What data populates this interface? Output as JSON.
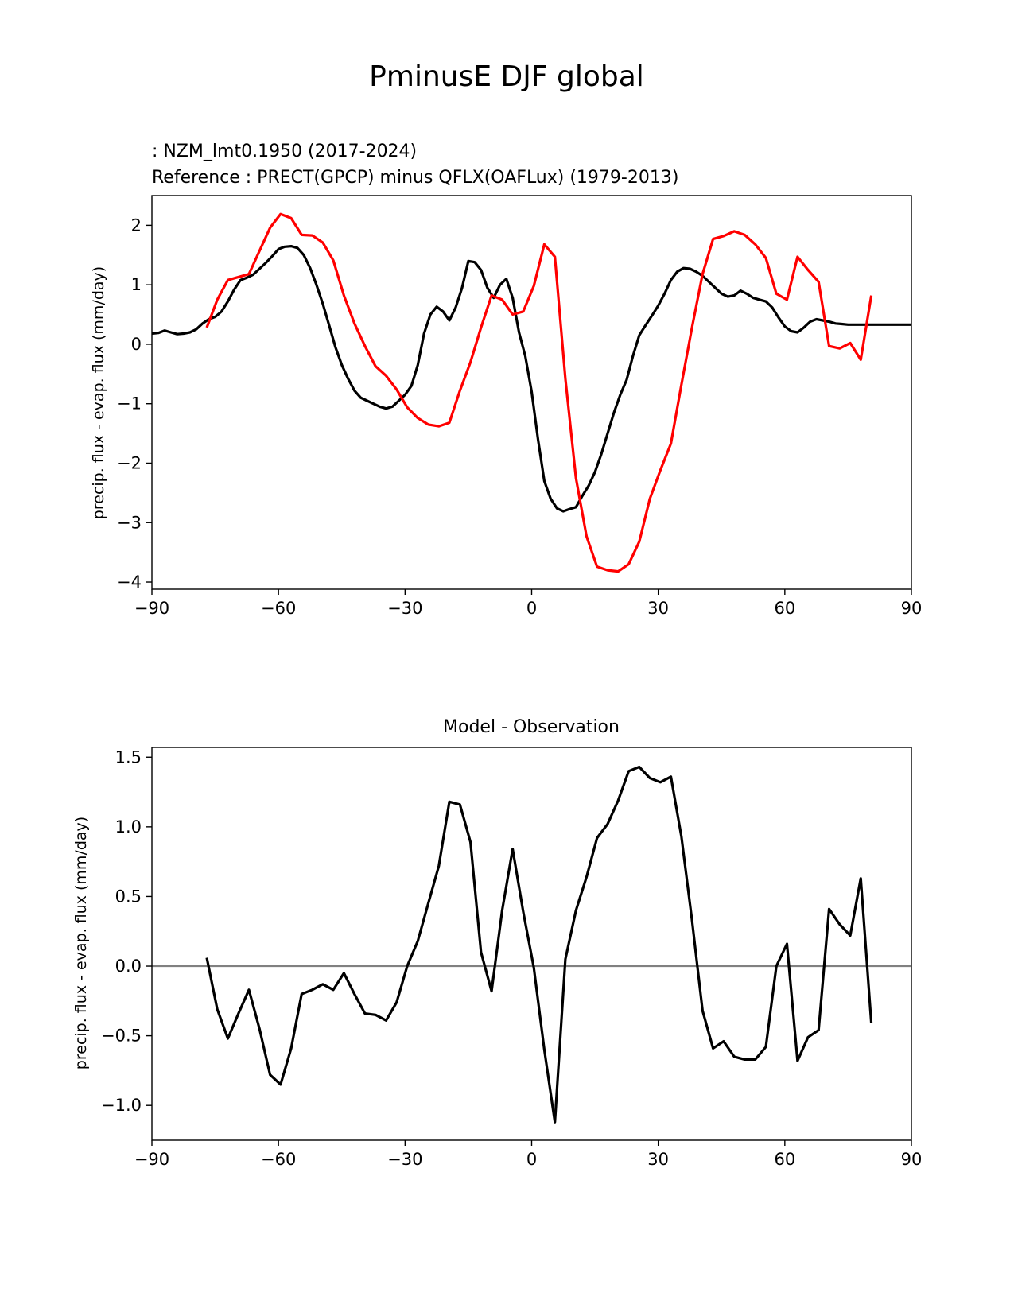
{
  "figure": {
    "title": "PminusE DJF global"
  },
  "chart_data": [
    {
      "type": "line",
      "subtitle_model": " : NZM_lmt0.1950 (2017-2024)",
      "subtitle_reference": "Reference : PRECT(GPCP) minus QFLX(OAFLux) (1979-2013)",
      "reference_color": "#ff0000",
      "model_color": "#000000",
      "xlabel": "",
      "ylabel": "precip. flux - evap. flux (mm/day)",
      "xlim": [
        -90,
        90
      ],
      "ylim": [
        -4.12,
        2.5
      ],
      "xticks": [
        -90,
        -60,
        -30,
        0,
        30,
        60,
        90
      ],
      "xtick_labels": [
        "−90",
        "−60",
        "−30",
        "0",
        "30",
        "60",
        "90"
      ],
      "yticks": [
        -4,
        -3,
        -2,
        -1,
        0,
        1,
        2
      ],
      "ytick_labels": [
        "−4",
        "−3",
        "−2",
        "−1",
        "0",
        "1",
        "2"
      ],
      "series": [
        {
          "color": "#000000",
          "x": [
            -90,
            -88.5,
            -87,
            -85.5,
            -84,
            -82.5,
            -81,
            -79.5,
            -78,
            -76.5,
            -75,
            -73.5,
            -72,
            -70.5,
            -69,
            -67.5,
            -66,
            -64.5,
            -63,
            -61.5,
            -60,
            -58.5,
            -57,
            -55.5,
            -54,
            -52.5,
            -51,
            -49.5,
            -48,
            -46.5,
            -45,
            -43.5,
            -42,
            -40.5,
            -39,
            -37.5,
            -36,
            -34.5,
            -33,
            -31.5,
            -30,
            -28.5,
            -27,
            -25.5,
            -24,
            -22.5,
            -21,
            -19.5,
            -18,
            -16.5,
            -15,
            -13.5,
            -12,
            -10.5,
            -9,
            -7.5,
            -6,
            -4.5,
            -3,
            -1.5,
            0,
            1.5,
            3,
            4.5,
            6,
            7.5,
            9,
            10.5,
            12,
            13.5,
            15,
            16.5,
            18,
            19.5,
            21,
            22.5,
            24,
            25.5,
            27,
            28.5,
            30,
            31.5,
            33,
            34.5,
            36,
            37.5,
            39,
            40.5,
            42,
            43.5,
            45,
            46.5,
            48,
            49.5,
            51,
            52.5,
            54,
            55.5,
            57,
            58.5,
            60,
            61.5,
            63,
            64.5,
            66,
            67.5,
            69,
            70.5,
            72,
            73.5,
            75,
            76.5,
            78,
            79.5,
            81,
            82.5,
            84,
            85.5,
            87,
            88.5,
            90
          ],
          "values": [
            0.18,
            0.19,
            0.23,
            0.2,
            0.17,
            0.18,
            0.2,
            0.25,
            0.35,
            0.42,
            0.46,
            0.55,
            0.72,
            0.92,
            1.08,
            1.12,
            1.17,
            1.27,
            1.37,
            1.48,
            1.6,
            1.64,
            1.65,
            1.62,
            1.5,
            1.28,
            1.0,
            0.68,
            0.32,
            -0.05,
            -0.35,
            -0.58,
            -0.78,
            -0.9,
            -0.95,
            -1.0,
            -1.05,
            -1.08,
            -1.05,
            -0.95,
            -0.85,
            -0.7,
            -0.35,
            0.18,
            0.5,
            0.63,
            0.55,
            0.4,
            0.62,
            0.95,
            1.4,
            1.38,
            1.25,
            0.95,
            0.78,
            1.0,
            1.1,
            0.78,
            0.2,
            -0.2,
            -0.8,
            -1.6,
            -2.3,
            -2.6,
            -2.76,
            -2.81,
            -2.77,
            -2.74,
            -2.55,
            -2.38,
            -2.15,
            -1.85,
            -1.5,
            -1.15,
            -0.85,
            -0.6,
            -0.2,
            0.15,
            0.32,
            0.48,
            0.65,
            0.85,
            1.08,
            1.22,
            1.28,
            1.27,
            1.22,
            1.15,
            1.05,
            0.95,
            0.85,
            0.8,
            0.82,
            0.9,
            0.85,
            0.78,
            0.75,
            0.72,
            0.62,
            0.45,
            0.3,
            0.22,
            0.2,
            0.28,
            0.38,
            0.42,
            0.4,
            0.38,
            0.35,
            0.34,
            0.33,
            0.33,
            0.33,
            0.33,
            0.33,
            0.33,
            0.33,
            0.33,
            0.33,
            0.33,
            0.33
          ]
        },
        {
          "color": "#ff0000",
          "x": [
            -77,
            -74.5,
            -72,
            -69.5,
            -67,
            -64.5,
            -62,
            -59.5,
            -57,
            -54.5,
            -52,
            -49.5,
            -47,
            -44.5,
            -42,
            -39.5,
            -37,
            -34.5,
            -32,
            -29.5,
            -27,
            -24.5,
            -22,
            -19.5,
            -17,
            -14.5,
            -12,
            -9.5,
            -7,
            -4.5,
            -2,
            0.5,
            3,
            5.5,
            8,
            10.5,
            13,
            15.5,
            18,
            20.5,
            23,
            25.5,
            28,
            30.5,
            33,
            35.5,
            38,
            40.5,
            43,
            45.5,
            48,
            50.5,
            53,
            55.5,
            58,
            60.5,
            63,
            65.5,
            68,
            70.5,
            73,
            75.5,
            78,
            80.5
          ],
          "values": [
            0.28,
            0.75,
            1.08,
            1.13,
            1.18,
            1.57,
            1.96,
            2.19,
            2.12,
            1.84,
            1.83,
            1.71,
            1.41,
            0.82,
            0.35,
            -0.03,
            -0.37,
            -0.53,
            -0.76,
            -1.06,
            -1.24,
            -1.35,
            -1.38,
            -1.32,
            -0.78,
            -0.3,
            0.28,
            0.82,
            0.75,
            0.5,
            0.55,
            0.98,
            1.68,
            1.47,
            -0.58,
            -2.25,
            -3.23,
            -3.74,
            -3.8,
            -3.82,
            -3.7,
            -3.32,
            -2.6,
            -2.12,
            -1.67,
            -0.68,
            0.28,
            1.18,
            1.77,
            1.82,
            1.9,
            1.84,
            1.68,
            1.45,
            0.85,
            0.75,
            1.47,
            1.25,
            1.05,
            -0.03,
            -0.07,
            0.02,
            -0.26,
            0.82
          ]
        }
      ]
    },
    {
      "type": "line",
      "title": "Model - Observation",
      "xlabel": "",
      "ylabel": "precip. flux - evap. flux (mm/day)",
      "xlim": [
        -90,
        90
      ],
      "ylim": [
        -1.25,
        1.57
      ],
      "xticks": [
        -90,
        -60,
        -30,
        0,
        30,
        60,
        90
      ],
      "xtick_labels": [
        "−90",
        "−60",
        "−30",
        "0",
        "30",
        "60",
        "90"
      ],
      "yticks": [
        -1.0,
        -0.5,
        0.0,
        0.5,
        1.0,
        1.5
      ],
      "ytick_labels": [
        "−1.0",
        "−0.5",
        "0.0",
        "0.5",
        "1.0",
        "1.5"
      ],
      "zero_line_color": "#808080",
      "series": [
        {
          "color": "#000000",
          "x": [
            -77,
            -74.5,
            -72,
            -69.5,
            -67,
            -64.5,
            -62,
            -59.5,
            -57,
            -54.5,
            -52,
            -49.5,
            -47,
            -44.5,
            -42,
            -39.5,
            -37,
            -34.5,
            -32,
            -29.5,
            -27,
            -24.5,
            -22,
            -19.5,
            -17,
            -14.5,
            -12,
            -9.5,
            -7,
            -4.5,
            -2,
            0.5,
            3,
            5.5,
            8,
            10.5,
            13,
            15.5,
            18,
            20.5,
            23,
            25.5,
            28,
            30.5,
            33,
            35.5,
            38,
            40.5,
            43,
            45.5,
            48,
            50.5,
            53,
            55.5,
            58,
            60.5,
            63,
            65.5,
            68,
            70.5,
            73,
            75.5,
            78,
            80.5
          ],
          "values": [
            0.06,
            -0.31,
            -0.52,
            -0.34,
            -0.17,
            -0.45,
            -0.78,
            -0.85,
            -0.59,
            -0.2,
            -0.17,
            -0.13,
            -0.17,
            -0.05,
            -0.2,
            -0.34,
            -0.35,
            -0.39,
            -0.26,
            0.0,
            0.18,
            0.45,
            0.72,
            1.18,
            1.16,
            0.89,
            0.1,
            -0.18,
            0.4,
            0.84,
            0.39,
            -0.01,
            -0.6,
            -1.12,
            0.05,
            0.4,
            0.64,
            0.92,
            1.02,
            1.19,
            1.4,
            1.43,
            1.35,
            1.32,
            1.36,
            0.93,
            0.33,
            -0.32,
            -0.59,
            -0.54,
            -0.65,
            -0.67,
            -0.67,
            -0.58,
            0.0,
            0.16,
            -0.68,
            -0.51,
            -0.46,
            0.41,
            0.3,
            0.22,
            0.63,
            -0.41
          ]
        }
      ]
    }
  ]
}
